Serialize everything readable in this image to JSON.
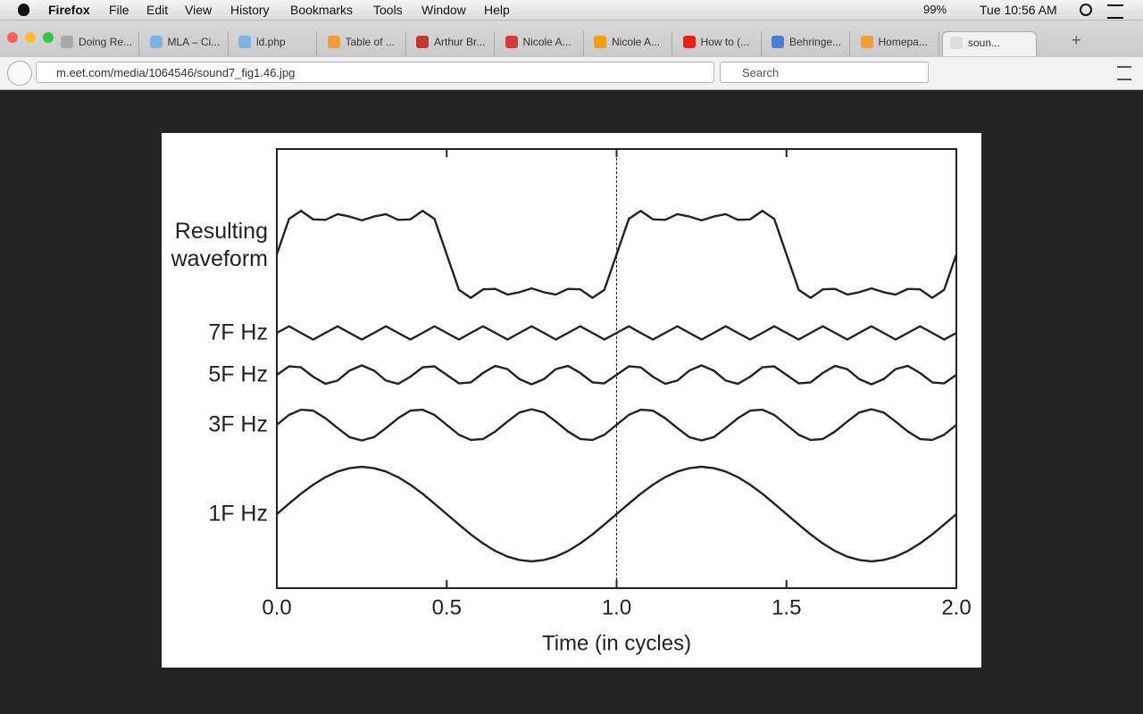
{
  "menu_bar": {
    "app": "Firefox",
    "items": [
      "File",
      "Edit",
      "View",
      "History",
      "Bookmarks",
      "Tools",
      "Window",
      "Help"
    ],
    "battery": "99%",
    "clock": "Tue 10:56 AM"
  },
  "tabs": [
    "Doing Re...",
    "MLA – Ci...",
    "ld.php",
    "Table of ...",
    "Arthur Br...",
    "Nicole A...",
    "Nicole A...",
    "How to (...",
    "Behringe...",
    "Homepa...",
    "soun..."
  ],
  "address_bar": {
    "url": "m.eet.com/media/1064546/sound7_fig1.46.jpg",
    "search_placeholder": "Search"
  },
  "chart_data": {
    "type": "line",
    "x_label": "Time (in cycles)",
    "x": [
      0,
      0.036,
      0.071,
      0.107,
      0.143,
      0.179,
      0.214,
      0.25,
      0.286,
      0.321,
      0.357,
      0.393,
      0.429,
      0.464,
      0.5,
      0.536,
      0.571,
      0.607,
      0.643,
      0.679,
      0.714,
      0.75,
      0.786,
      0.821,
      0.857,
      0.893,
      0.929,
      0.964,
      1,
      1.036,
      1.071,
      1.107,
      1.143,
      1.179,
      1.214,
      1.25,
      1.286,
      1.321,
      1.357,
      1.393,
      1.429,
      1.464,
      1.5,
      1.536,
      1.571,
      1.607,
      1.643,
      1.679,
      1.714,
      1.75,
      1.786,
      1.821,
      1.857,
      1.893,
      1.929,
      1.964,
      2
    ],
    "xlim": [
      0,
      2
    ],
    "xticks": [
      {
        "value": 0,
        "label": "0.0"
      },
      {
        "value": 0.5,
        "label": "0.5"
      },
      {
        "value": 1,
        "label": "1.0"
      },
      {
        "value": 1.5,
        "label": "1.5"
      },
      {
        "value": 2,
        "label": "2.0"
      }
    ],
    "vline": 1,
    "series": [
      {
        "name": "Resulting waveform",
        "color": "#222222",
        "values": [
          0,
          0.75,
          0.92,
          0.74,
          0.73,
          0.85,
          0.8,
          0.72,
          0.8,
          0.85,
          0.73,
          0.74,
          0.92,
          0.75,
          0,
          -0.75,
          -0.92,
          -0.74,
          -0.73,
          -0.85,
          -0.8,
          -0.72,
          -0.8,
          -0.85,
          -0.73,
          -0.74,
          -0.92,
          -0.75,
          0,
          0.75,
          0.92,
          0.74,
          0.73,
          0.85,
          0.8,
          0.72,
          0.8,
          0.85,
          0.73,
          0.74,
          0.92,
          0.75,
          0,
          -0.75,
          -0.92,
          -0.74,
          -0.73,
          -0.85,
          -0.8,
          -0.72,
          -0.8,
          -0.85,
          -0.73,
          -0.74,
          -0.92,
          -0.75,
          0
        ]
      },
      {
        "name": "7F Hz",
        "color": "#222222",
        "values": [
          0,
          0.14,
          0,
          -0.14,
          0,
          0.14,
          0,
          -0.14,
          0,
          0.14,
          0,
          -0.14,
          0,
          0.14,
          0,
          -0.14,
          0,
          0.14,
          0,
          -0.14,
          0,
          0.14,
          0,
          -0.14,
          0,
          0.14,
          0,
          -0.14,
          0,
          0.14,
          0,
          -0.14,
          0,
          0.14,
          0,
          -0.14,
          0,
          0.14,
          0,
          -0.14,
          0,
          0.14,
          0,
          -0.14,
          0,
          0.14,
          0,
          -0.14,
          0,
          0.14,
          0,
          -0.14,
          0,
          0.14,
          0,
          -0.14,
          0
        ]
      },
      {
        "name": "5F Hz",
        "color": "#222222",
        "values": [
          0,
          0.18,
          0.16,
          -0.04,
          -0.19,
          -0.12,
          0.09,
          0.2,
          0.09,
          -0.12,
          -0.19,
          -0.04,
          0.16,
          0.18,
          0,
          -0.18,
          -0.16,
          0.04,
          0.19,
          0.12,
          -0.09,
          -0.2,
          -0.09,
          0.12,
          0.19,
          0.04,
          -0.16,
          -0.18,
          0,
          0.18,
          0.16,
          -0.04,
          -0.19,
          -0.12,
          0.09,
          0.2,
          0.09,
          -0.12,
          -0.19,
          -0.04,
          0.16,
          0.18,
          0,
          -0.18,
          -0.16,
          0.04,
          0.19,
          0.12,
          -0.09,
          -0.2,
          -0.09,
          0.12,
          0.19,
          0.04,
          -0.16,
          -0.18,
          0
        ]
      },
      {
        "name": "3F Hz",
        "color": "#222222",
        "values": [
          0,
          0.21,
          0.32,
          0.3,
          0.14,
          -0.07,
          -0.26,
          -0.33,
          -0.26,
          -0.07,
          0.14,
          0.3,
          0.32,
          0.21,
          0,
          -0.21,
          -0.32,
          -0.3,
          -0.14,
          0.07,
          0.26,
          0.33,
          0.26,
          0.07,
          -0.14,
          -0.3,
          -0.32,
          -0.21,
          0,
          0.21,
          0.32,
          0.3,
          0.14,
          -0.07,
          -0.26,
          -0.33,
          -0.26,
          -0.07,
          0.14,
          0.3,
          0.32,
          0.21,
          0,
          -0.21,
          -0.32,
          -0.3,
          -0.14,
          0.07,
          0.26,
          0.33,
          0.26,
          0.07,
          -0.14,
          -0.3,
          -0.32,
          -0.21,
          0
        ]
      },
      {
        "name": "1F Hz",
        "color": "#222222",
        "values": [
          0,
          0.22,
          0.43,
          0.62,
          0.78,
          0.9,
          0.97,
          1,
          0.97,
          0.9,
          0.78,
          0.62,
          0.43,
          0.22,
          0,
          -0.22,
          -0.43,
          -0.62,
          -0.78,
          -0.9,
          -0.97,
          -1,
          -0.97,
          -0.9,
          -0.78,
          -0.62,
          -0.43,
          -0.22,
          0,
          0.22,
          0.43,
          0.62,
          0.78,
          0.9,
          0.97,
          1,
          0.97,
          0.9,
          0.78,
          0.62,
          0.43,
          0.22,
          0,
          -0.22,
          -0.43,
          -0.62,
          -0.78,
          -0.9,
          -0.97,
          -1,
          -0.97,
          -0.9,
          -0.78,
          -0.62,
          -0.43,
          -0.22,
          0
        ]
      }
    ]
  }
}
